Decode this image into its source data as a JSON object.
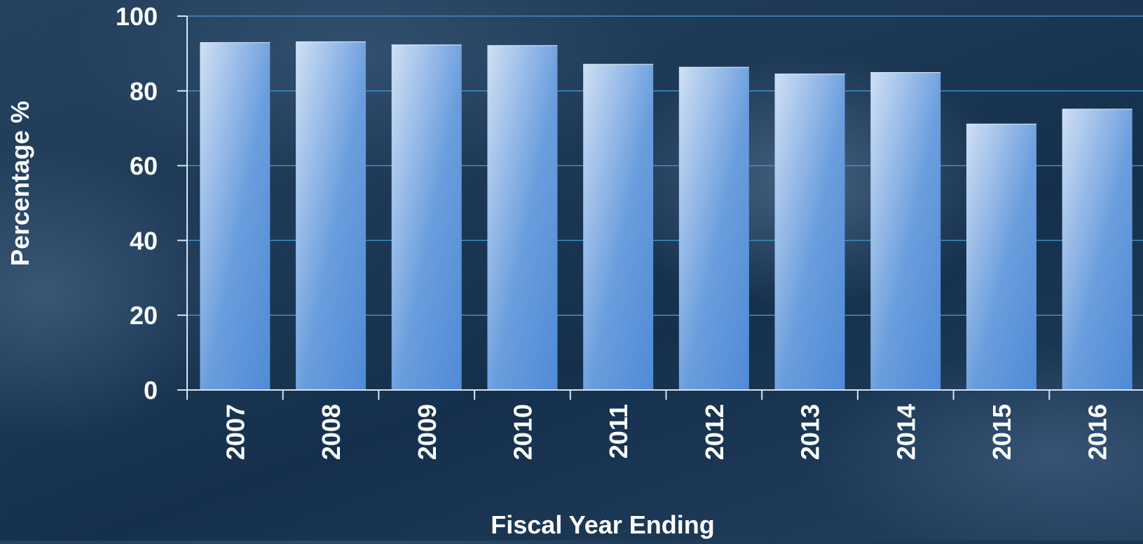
{
  "chart_data": {
    "type": "bar",
    "title": "",
    "xlabel": "Fiscal Year Ending",
    "ylabel": "Percentage %",
    "categories": [
      "2007",
      "2008",
      "2009",
      "2010",
      "2011",
      "2012",
      "2013",
      "2014",
      "2015",
      "2016"
    ],
    "values": [
      93,
      93.2,
      92.4,
      92.2,
      87.2,
      86.4,
      84.6,
      85,
      71.2,
      75.2
    ],
    "ylim": [
      0,
      100
    ],
    "yticks": [
      "0",
      "20",
      "40",
      "60",
      "80",
      "100"
    ],
    "grid": true,
    "legend": "none",
    "colors": {
      "bar_light": "#c9dbf3",
      "bar_dark": "#5590d8",
      "gridline": "#3f8fc4",
      "axis": "#d9e4ef",
      "text": "#ffffff"
    }
  }
}
